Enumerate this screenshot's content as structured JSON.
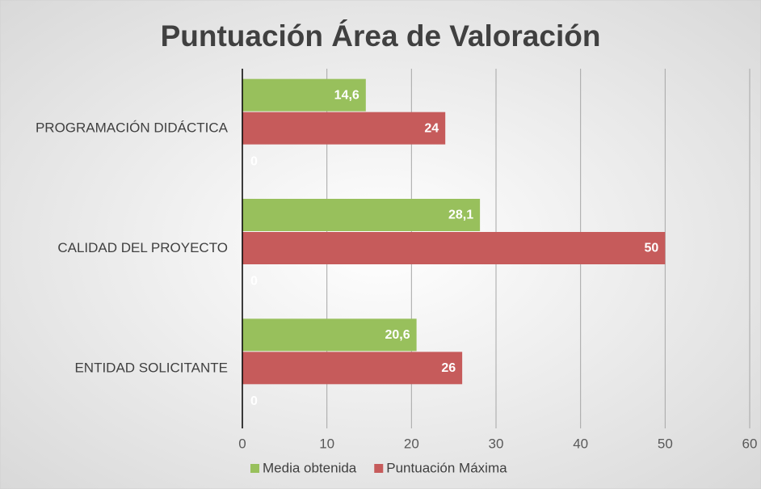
{
  "chart_data": {
    "type": "hbar",
    "title": "Puntuación Área de Valoración",
    "categories": [
      "PROGRAMACIÓN DIDÁCTICA",
      "CALIDAD DEL PROYECTO",
      "ENTIDAD SOLICITANTE"
    ],
    "series": [
      {
        "name": "Media obtenida",
        "color": "#98c05c",
        "values": [
          14.6,
          28.1,
          20.6
        ],
        "value_labels": [
          "14,6",
          "28,1",
          "20,6"
        ]
      },
      {
        "name": "Puntuación Máxima",
        "color": "#c65b5b",
        "values": [
          24,
          50,
          26
        ]
      },
      {
        "color": "#8faad9",
        "values": [
          0,
          0,
          0
        ]
      }
    ],
    "xlim": [
      0,
      60
    ],
    "xticks": [
      0,
      10,
      20,
      30,
      40,
      50,
      60
    ],
    "grid": true,
    "legend": "bottom"
  }
}
